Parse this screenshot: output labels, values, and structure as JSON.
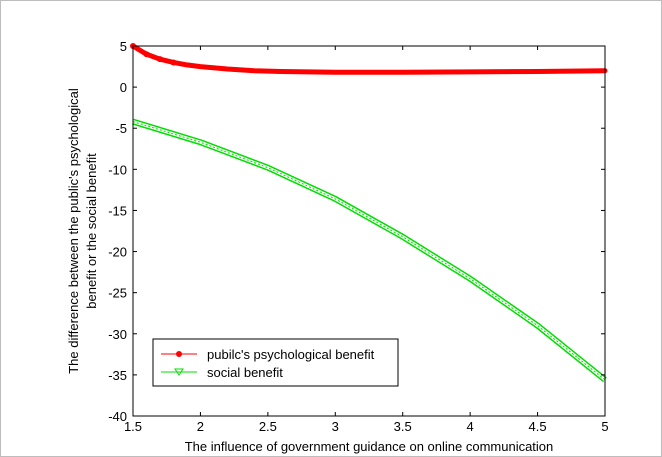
{
  "chart_data": {
    "type": "line",
    "title": "",
    "xlabel": "The influence of government guidance on online communication",
    "ylabel_lines": [
      "The difference between the public's psychological",
      "benefit or the social benefit"
    ],
    "xlim": [
      1.5,
      5
    ],
    "ylim": [
      -40,
      5
    ],
    "xticks": [
      1.5,
      2,
      2.5,
      3,
      3.5,
      4,
      4.5,
      5
    ],
    "xtick_labels": [
      "1.5",
      "2",
      "2.5",
      "3",
      "3.5",
      "4",
      "4.5",
      "5"
    ],
    "yticks": [
      -40,
      -35,
      -30,
      -25,
      -20,
      -15,
      -10,
      -5,
      0,
      5
    ],
    "ytick_labels": [
      "-40",
      "-35",
      "-30",
      "-25",
      "-20",
      "-15",
      "-10",
      "-5",
      "0",
      "5"
    ],
    "grid": false,
    "legend_position": "lower-left",
    "series": [
      {
        "name": "pubilc's psychological benefit",
        "color": "#ff0000",
        "marker": "dot",
        "x": [
          1.5,
          1.6,
          1.7,
          1.8,
          1.9,
          2.0,
          2.2,
          2.4,
          2.6,
          2.8,
          3.0,
          3.5,
          4.0,
          4.5,
          5.0
        ],
        "y": [
          5.0,
          4.0,
          3.4,
          3.0,
          2.7,
          2.5,
          2.2,
          2.0,
          1.9,
          1.85,
          1.8,
          1.8,
          1.85,
          1.9,
          2.0
        ]
      },
      {
        "name": "social benefit",
        "color": "#00dd00",
        "marker": "triangle",
        "x": [
          1.5,
          2.0,
          2.5,
          3.0,
          3.5,
          4.0,
          4.5,
          5.0
        ],
        "y": [
          -4.2,
          -6.7,
          -9.8,
          -13.6,
          -18.2,
          -23.3,
          -29.0,
          -35.6
        ]
      }
    ]
  }
}
